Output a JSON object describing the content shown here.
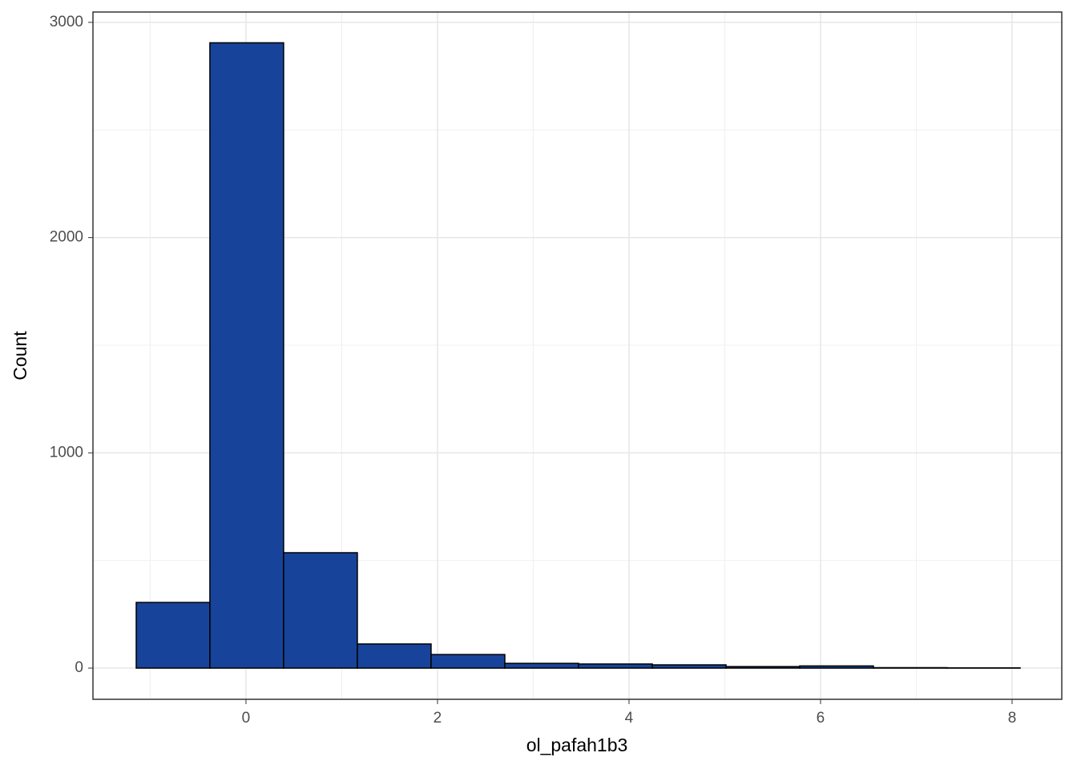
{
  "chart_data": {
    "type": "histogram",
    "x_label": "ol_pafah1b3",
    "y_label": "Count",
    "bins": [
      -1.146,
      -0.377,
      0.393,
      1.163,
      1.933,
      2.703,
      3.473,
      4.243,
      5.013,
      5.782,
      6.552,
      7.322,
      8.084
    ],
    "values": [
      305,
      2905,
      536,
      112,
      63,
      22,
      19,
      15,
      7,
      10,
      2,
      1
    ],
    "color": "#17449a",
    "xlim": [
      -1.598,
      8.519
    ],
    "xticks": [
      0,
      2,
      4,
      6,
      8
    ],
    "minor_xticks": [
      -1,
      1,
      3,
      5,
      7
    ],
    "ylim": [
      -145,
      3048
    ],
    "yticks": [
      0,
      1000,
      2000,
      3000
    ],
    "minor_yticks": [
      500,
      1500,
      2500
    ],
    "grid": true
  }
}
